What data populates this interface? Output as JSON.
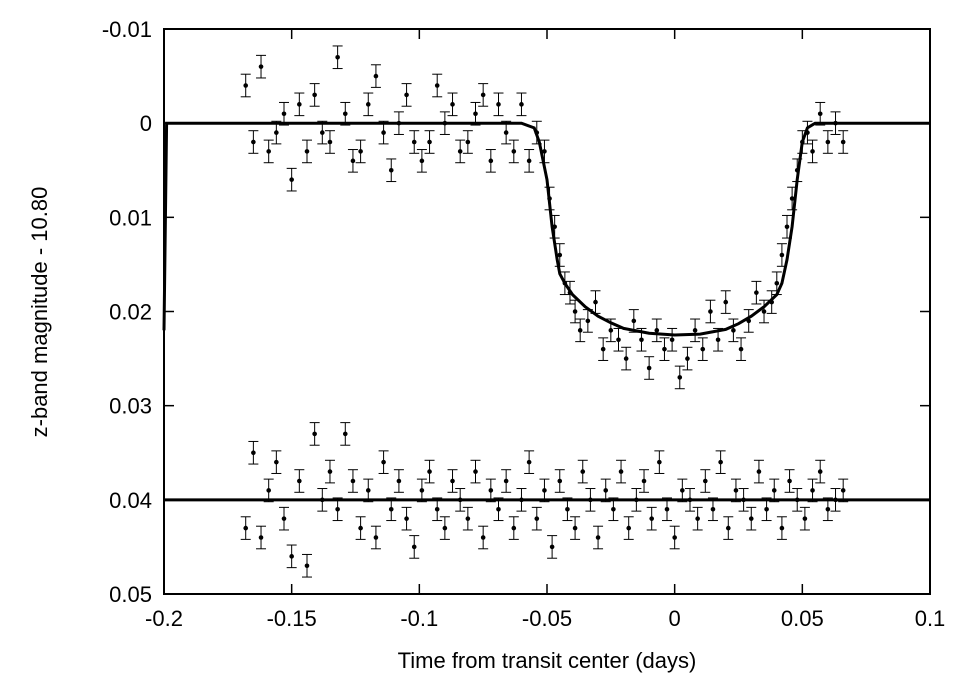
{
  "chart_data": {
    "type": "scatter",
    "title": "",
    "xlabel": "Time from transit center (days)",
    "ylabel": "z-band magnitude - 10.80",
    "xlim": [
      -0.2,
      0.1
    ],
    "ylim": [
      -0.01,
      0.05
    ],
    "y_inverted": true,
    "x_ticks": [
      -0.2,
      -0.15,
      -0.1,
      -0.05,
      0,
      0.05,
      0.1
    ],
    "x_tick_labels": [
      "-0.2",
      "-0.15",
      "-0.1",
      "-0.05",
      "0",
      "0.05",
      "0.1"
    ],
    "y_ticks": [
      -0.01,
      0,
      0.01,
      0.02,
      0.03,
      0.04,
      0.05
    ],
    "y_tick_labels": [
      "-0.01",
      "0",
      "0.01",
      "0.02",
      "0.03",
      "0.04",
      "0.05"
    ],
    "grid": false,
    "legend": "none",
    "colors": {
      "data": "#000000",
      "model": "#000000",
      "frame": "#000000"
    },
    "error_bar": 0.0012,
    "series": [
      {
        "kind": "light-curve",
        "x": [
          -0.168,
          -0.165,
          -0.162,
          -0.159,
          -0.156,
          -0.153,
          -0.15,
          -0.147,
          -0.144,
          -0.141,
          -0.138,
          -0.135,
          -0.132,
          -0.129,
          -0.126,
          -0.123,
          -0.12,
          -0.117,
          -0.114,
          -0.111,
          -0.108,
          -0.105,
          -0.102,
          -0.099,
          -0.096,
          -0.093,
          -0.09,
          -0.087,
          -0.084,
          -0.081,
          -0.078,
          -0.075,
          -0.072,
          -0.069,
          -0.066,
          -0.063,
          -0.06,
          -0.057,
          -0.054,
          -0.051,
          -0.049,
          -0.047,
          -0.045,
          -0.043,
          -0.041,
          -0.039,
          -0.037,
          -0.034,
          -0.031,
          -0.028,
          -0.025,
          -0.022,
          -0.019,
          -0.016,
          -0.013,
          -0.01,
          -0.007,
          -0.004,
          -0.001,
          0.002,
          0.005,
          0.008,
          0.011,
          0.014,
          0.017,
          0.02,
          0.023,
          0.026,
          0.029,
          0.032,
          0.035,
          0.038,
          0.04,
          0.042,
          0.044,
          0.046,
          0.048,
          0.05,
          0.052,
          0.054,
          0.057,
          0.06,
          0.063,
          0.066
        ],
        "y": [
          -0.004,
          0.002,
          -0.006,
          0.003,
          0.001,
          -0.001,
          0.006,
          -0.002,
          0.003,
          -0.003,
          0.001,
          0.002,
          -0.007,
          -0.001,
          0.004,
          0.003,
          -0.002,
          -0.005,
          0.001,
          0.005,
          0.0,
          -0.003,
          0.002,
          0.004,
          0.002,
          -0.004,
          0.0,
          -0.002,
          0.003,
          0.002,
          -0.001,
          -0.003,
          0.004,
          -0.002,
          0.001,
          0.003,
          -0.002,
          0.004,
          0.001,
          0.003,
          0.008,
          0.011,
          0.014,
          0.017,
          0.018,
          0.02,
          0.022,
          0.021,
          0.019,
          0.024,
          0.022,
          0.023,
          0.025,
          0.021,
          0.023,
          0.026,
          0.022,
          0.024,
          0.023,
          0.027,
          0.025,
          0.022,
          0.024,
          0.02,
          0.023,
          0.019,
          0.022,
          0.024,
          0.021,
          0.018,
          0.02,
          0.019,
          0.017,
          0.014,
          0.011,
          0.008,
          0.005,
          0.002,
          0.001,
          0.003,
          -0.001,
          0.002,
          0.0,
          0.002
        ]
      },
      {
        "kind": "residuals",
        "x": [
          -0.168,
          -0.165,
          -0.162,
          -0.159,
          -0.156,
          -0.153,
          -0.15,
          -0.147,
          -0.144,
          -0.141,
          -0.138,
          -0.135,
          -0.132,
          -0.129,
          -0.126,
          -0.123,
          -0.12,
          -0.117,
          -0.114,
          -0.111,
          -0.108,
          -0.105,
          -0.102,
          -0.099,
          -0.096,
          -0.093,
          -0.09,
          -0.087,
          -0.084,
          -0.081,
          -0.078,
          -0.075,
          -0.072,
          -0.069,
          -0.066,
          -0.063,
          -0.06,
          -0.057,
          -0.054,
          -0.051,
          -0.048,
          -0.045,
          -0.042,
          -0.039,
          -0.036,
          -0.033,
          -0.03,
          -0.027,
          -0.024,
          -0.021,
          -0.018,
          -0.015,
          -0.012,
          -0.009,
          -0.006,
          -0.003,
          0.0,
          0.003,
          0.006,
          0.009,
          0.012,
          0.015,
          0.018,
          0.021,
          0.024,
          0.027,
          0.03,
          0.033,
          0.036,
          0.039,
          0.042,
          0.045,
          0.048,
          0.051,
          0.054,
          0.057,
          0.06,
          0.063,
          0.066
        ],
        "y": [
          0.043,
          0.035,
          0.044,
          0.039,
          0.036,
          0.042,
          0.046,
          0.038,
          0.047,
          0.033,
          0.04,
          0.037,
          0.041,
          0.033,
          0.038,
          0.043,
          0.039,
          0.044,
          0.036,
          0.041,
          0.038,
          0.042,
          0.045,
          0.039,
          0.037,
          0.041,
          0.043,
          0.038,
          0.04,
          0.042,
          0.037,
          0.044,
          0.039,
          0.041,
          0.038,
          0.043,
          0.04,
          0.036,
          0.042,
          0.039,
          0.045,
          0.038,
          0.041,
          0.043,
          0.037,
          0.04,
          0.044,
          0.039,
          0.041,
          0.037,
          0.043,
          0.04,
          0.038,
          0.042,
          0.036,
          0.041,
          0.044,
          0.039,
          0.04,
          0.042,
          0.038,
          0.041,
          0.036,
          0.043,
          0.039,
          0.04,
          0.042,
          0.037,
          0.041,
          0.039,
          0.043,
          0.038,
          0.04,
          0.042,
          0.039,
          0.037,
          0.041,
          0.04,
          0.039
        ]
      }
    ],
    "model": {
      "kind": "transit-model",
      "x": [
        -0.2,
        -0.199,
        -0.1985,
        -0.17,
        -0.1,
        -0.06,
        -0.055,
        -0.053,
        -0.05,
        -0.048,
        -0.046,
        -0.045,
        -0.043,
        -0.04,
        -0.035,
        -0.03,
        -0.025,
        -0.02,
        -0.01,
        0.0,
        0.01,
        0.02,
        0.025,
        0.03,
        0.035,
        0.04,
        0.042,
        0.044,
        0.046,
        0.048,
        0.05,
        0.052,
        0.055,
        0.06,
        0.1
      ],
      "y": [
        0.022,
        0.0,
        0.0,
        0.0,
        0.0,
        0.0,
        0.0005,
        0.002,
        0.006,
        0.011,
        0.0145,
        0.016,
        0.017,
        0.0182,
        0.0195,
        0.0205,
        0.0212,
        0.0218,
        0.0223,
        0.0225,
        0.0224,
        0.0219,
        0.0213,
        0.0205,
        0.0195,
        0.0182,
        0.017,
        0.0145,
        0.011,
        0.006,
        0.002,
        0.0005,
        0.0,
        0.0,
        0.0
      ]
    },
    "baseline": {
      "kind": "residual-baseline",
      "x": [
        -0.2,
        0.1
      ],
      "y": [
        0.04,
        0.04
      ]
    }
  }
}
